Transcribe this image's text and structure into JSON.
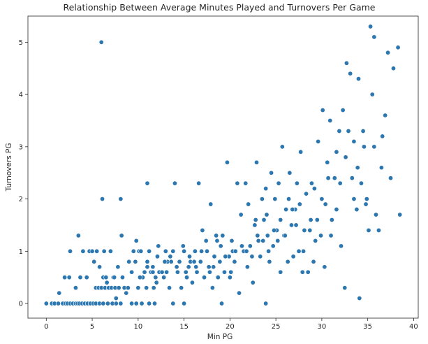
{
  "chart_data": {
    "type": "scatter",
    "title": "Relationship Between Average Minutes Played and Turnovers Per Game",
    "xlabel": "Min PG",
    "ylabel": "Turnovers PG",
    "xlim": [
      -2,
      40.5
    ],
    "ylim": [
      -0.28,
      5.5
    ],
    "xticks": [
      0,
      5,
      10,
      15,
      20,
      25,
      30,
      35,
      40
    ],
    "yticks": [
      0,
      1,
      2,
      3,
      4,
      5
    ],
    "xtick_labels": [
      "0",
      "5",
      "10",
      "15",
      "20",
      "25",
      "30",
      "35",
      "40"
    ],
    "ytick_labels": [
      "0",
      "1",
      "2",
      "3",
      "4",
      "5"
    ],
    "grid": false,
    "point_color": "#2d77b0",
    "points": [
      [
        0,
        0
      ],
      [
        0.6,
        0
      ],
      [
        0.9,
        0
      ],
      [
        1.3,
        0
      ],
      [
        1.8,
        0
      ],
      [
        2.1,
        0
      ],
      [
        2.3,
        0
      ],
      [
        2.6,
        0
      ],
      [
        2.9,
        0
      ],
      [
        3.2,
        0
      ],
      [
        3.4,
        0
      ],
      [
        3.6,
        0
      ],
      [
        3.9,
        0
      ],
      [
        4.2,
        0
      ],
      [
        4.5,
        0
      ],
      [
        4.8,
        0
      ],
      [
        5.1,
        0
      ],
      [
        5.4,
        0
      ],
      [
        5.8,
        0
      ],
      [
        6.2,
        0
      ],
      [
        6.7,
        0
      ],
      [
        7.2,
        0
      ],
      [
        7.6,
        0
      ],
      [
        8.1,
        0
      ],
      [
        9.3,
        0
      ],
      [
        9.8,
        0
      ],
      [
        10.4,
        0
      ],
      [
        11.2,
        0
      ],
      [
        11.8,
        0
      ],
      [
        13.8,
        0
      ],
      [
        15,
        0
      ],
      [
        19.1,
        0
      ],
      [
        23.9,
        0
      ],
      [
        1.4,
        0.2
      ],
      [
        2,
        0.5
      ],
      [
        2.5,
        0.5
      ],
      [
        2.6,
        1
      ],
      [
        3.2,
        0.3
      ],
      [
        3.5,
        1.3
      ],
      [
        3.7,
        0.5
      ],
      [
        4,
        1
      ],
      [
        4.4,
        0.5
      ],
      [
        4.7,
        1
      ],
      [
        5,
        1
      ],
      [
        5.2,
        0.8
      ],
      [
        5.4,
        0.3
      ],
      [
        5.5,
        1
      ],
      [
        5.7,
        0.3
      ],
      [
        5.8,
        0.7
      ],
      [
        6,
        0.3
      ],
      [
        6.1,
        2
      ],
      [
        6.2,
        0.5
      ],
      [
        6.3,
        1
      ],
      [
        6.4,
        0.3
      ],
      [
        6.5,
        0.5
      ],
      [
        6.6,
        0.4
      ],
      [
        6.8,
        0.3
      ],
      [
        7,
        1
      ],
      [
        7.1,
        0.3
      ],
      [
        7.3,
        0.5
      ],
      [
        7.5,
        0.3
      ],
      [
        7.6,
        0.1
      ],
      [
        7.8,
        0.7
      ],
      [
        7.9,
        0.3
      ],
      [
        8.1,
        2
      ],
      [
        8.2,
        1.3
      ],
      [
        8.3,
        0.5
      ],
      [
        8.5,
        0.3
      ],
      [
        8.7,
        0.2
      ],
      [
        8.9,
        0.3
      ],
      [
        9.3,
        0.6
      ],
      [
        9.5,
        1
      ],
      [
        9.7,
        0.8
      ],
      [
        9.8,
        1.2
      ],
      [
        10,
        0.3
      ],
      [
        10.1,
        1
      ],
      [
        10.3,
        1
      ],
      [
        10.5,
        0.5
      ],
      [
        10.7,
        0.6
      ],
      [
        10.9,
        0.3
      ],
      [
        11,
        2.3
      ],
      [
        11,
        0.8
      ],
      [
        11.2,
        1
      ],
      [
        11.4,
        0.6
      ],
      [
        11.6,
        0.7
      ],
      [
        11.7,
        0.3
      ],
      [
        11.9,
        0.5
      ],
      [
        12.1,
        0.9
      ],
      [
        12.3,
        0.6
      ],
      [
        12.6,
        0.6
      ],
      [
        12.8,
        0.5
      ],
      [
        13,
        1
      ],
      [
        13.2,
        0.8
      ],
      [
        13.4,
        0.3
      ],
      [
        13.6,
        0.8
      ],
      [
        13.8,
        1
      ],
      [
        14,
        2.3
      ],
      [
        14.2,
        0.7
      ],
      [
        14.5,
        0.8
      ],
      [
        14.7,
        0.3
      ],
      [
        15,
        1
      ],
      [
        15.3,
        0.5
      ],
      [
        15.5,
        0.7
      ],
      [
        15.7,
        0.8
      ],
      [
        15.9,
        0.4
      ],
      [
        16.2,
        1
      ],
      [
        16.4,
        0.6
      ],
      [
        16.6,
        2.3
      ],
      [
        16.8,
        0.8
      ],
      [
        17,
        1.4
      ],
      [
        17.2,
        0.5
      ],
      [
        17.5,
        1
      ],
      [
        17.7,
        0.7
      ],
      [
        17.9,
        1.9
      ],
      [
        18.1,
        0.3
      ],
      [
        18.3,
        0.9
      ],
      [
        18.5,
        1.3
      ],
      [
        18.7,
        0.5
      ],
      [
        18.9,
        0.8
      ],
      [
        19.2,
        1.3
      ],
      [
        19.4,
        0.6
      ],
      [
        19.7,
        2.7
      ],
      [
        19.9,
        0.9
      ],
      [
        20.1,
        0.6
      ],
      [
        20.3,
        1
      ],
      [
        20.5,
        0.8
      ],
      [
        20.8,
        2.3
      ],
      [
        21,
        0.2
      ],
      [
        21.2,
        1.7
      ],
      [
        21.5,
        1
      ],
      [
        21.7,
        2.3
      ],
      [
        21.9,
        0.7
      ],
      [
        22.2,
        1.1
      ],
      [
        22.5,
        0.4
      ],
      [
        22.7,
        1.5
      ],
      [
        22.9,
        2.7
      ],
      [
        23.1,
        1.2
      ],
      [
        23.3,
        0.9
      ],
      [
        23.5,
        2
      ],
      [
        23.7,
        1.6
      ],
      [
        23.9,
        2.2
      ],
      [
        24.1,
        1.3
      ],
      [
        24.3,
        0.8
      ],
      [
        24.5,
        2.5
      ],
      [
        24.7,
        1.1
      ],
      [
        24.9,
        2
      ],
      [
        25.1,
        1.4
      ],
      [
        25.3,
        2.3
      ],
      [
        25.5,
        0.6
      ],
      [
        25.7,
        3
      ],
      [
        25.9,
        1.3
      ],
      [
        26.1,
        1.8
      ],
      [
        26.3,
        0.8
      ],
      [
        26.5,
        2.5
      ],
      [
        26.7,
        1.5
      ],
      [
        26.9,
        0.9
      ],
      [
        27.1,
        1.8
      ],
      [
        27.3,
        2.3
      ],
      [
        27.5,
        1
      ],
      [
        27.7,
        2.9
      ],
      [
        27.9,
        0.6
      ],
      [
        28.1,
        1.4
      ],
      [
        28.3,
        2.1
      ],
      [
        28.5,
        0.6
      ],
      [
        28.7,
        1.4
      ],
      [
        28.9,
        2.3
      ],
      [
        29.1,
        0.8
      ],
      [
        29.3,
        1.2
      ],
      [
        29.6,
        3.1
      ],
      [
        29.9,
        1.3
      ],
      [
        30.1,
        3.7
      ],
      [
        30.3,
        0.7
      ],
      [
        30.6,
        2.7
      ],
      [
        30.9,
        3.5
      ],
      [
        31.1,
        1.6
      ],
      [
        31.4,
        2.4
      ],
      [
        31.6,
        1.8
      ],
      [
        31.9,
        3.3
      ],
      [
        32.1,
        1.1
      ],
      [
        32.3,
        3.7
      ],
      [
        32.5,
        0.3
      ],
      [
        32.6,
        2.8
      ],
      [
        32.7,
        4.6
      ],
      [
        32.9,
        3.3
      ],
      [
        33.1,
        4.4
      ],
      [
        33.3,
        2.4
      ],
      [
        33.5,
        3.1
      ],
      [
        33.8,
        1.8
      ],
      [
        34,
        4.3
      ],
      [
        34.1,
        0.1
      ],
      [
        34.3,
        2.3
      ],
      [
        34.6,
        3
      ],
      [
        34.9,
        2
      ],
      [
        35.1,
        1.4
      ],
      [
        35.3,
        5.3
      ],
      [
        35.5,
        4
      ],
      [
        35.7,
        5.1
      ],
      [
        35.9,
        1.7
      ],
      [
        36.2,
        1.4
      ],
      [
        36.6,
        3.2
      ],
      [
        36.9,
        3.6
      ],
      [
        37.2,
        4.8
      ],
      [
        37.5,
        2.4
      ],
      [
        37.8,
        4.5
      ],
      [
        38.3,
        4.9
      ],
      [
        38.5,
        1.7
      ],
      [
        6,
        5
      ],
      [
        30,
        2
      ],
      [
        31,
        1.3
      ],
      [
        29.5,
        1.6
      ],
      [
        28,
        1
      ],
      [
        26.8,
        1.8
      ],
      [
        25.5,
        1.6
      ],
      [
        24.2,
        1
      ],
      [
        22.8,
        1.6
      ],
      [
        21.8,
        1
      ],
      [
        20.6,
        1
      ],
      [
        19.5,
        0.9
      ],
      [
        18.2,
        0.7
      ],
      [
        16.9,
        1
      ],
      [
        15.6,
        0.9
      ],
      [
        14.3,
        0.6
      ],
      [
        12.9,
        0.8
      ],
      [
        11.6,
        0.6
      ],
      [
        10.2,
        0.5
      ],
      [
        9,
        0.8
      ],
      [
        7.4,
        0.5
      ],
      [
        33.5,
        2
      ],
      [
        34.5,
        3.3
      ],
      [
        32,
        2.3
      ],
      [
        30.7,
        2.4
      ],
      [
        29.2,
        2.2
      ],
      [
        27.6,
        1.9
      ],
      [
        26.4,
        2
      ],
      [
        25.2,
        1.2
      ],
      [
        24,
        1.7
      ],
      [
        23,
        1.3
      ],
      [
        22,
        1.9
      ],
      [
        20.2,
        1.2
      ],
      [
        19,
        1.1
      ],
      [
        17.4,
        1.2
      ],
      [
        16.1,
        0.8
      ],
      [
        14.9,
        1.1
      ],
      [
        13.5,
        0.9
      ],
      [
        12.2,
        1.1
      ],
      [
        11,
        0.7
      ],
      [
        36.5,
        2.6
      ],
      [
        35.7,
        3
      ],
      [
        34.8,
        1.9
      ],
      [
        33.9,
        2.6
      ],
      [
        31.6,
        2.9
      ],
      [
        30.4,
        1.9
      ],
      [
        28.8,
        1.6
      ],
      [
        27.2,
        1.5
      ],
      [
        26,
        1.3
      ],
      [
        24.8,
        1.4
      ],
      [
        23.6,
        1.2
      ],
      [
        22.4,
        0.9
      ],
      [
        21.3,
        1.1
      ],
      [
        20,
        0.5
      ],
      [
        18.6,
        1.2
      ],
      [
        17.8,
        0.6
      ],
      [
        16.3,
        0.7
      ],
      [
        15.2,
        0.6
      ],
      [
        13.1,
        0.6
      ],
      [
        12,
        0.4
      ]
    ]
  }
}
